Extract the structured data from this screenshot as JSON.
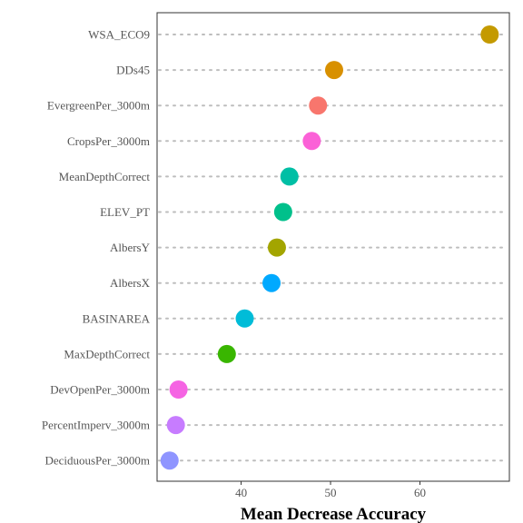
{
  "chart_data": {
    "type": "scatter",
    "style": "dot-plot",
    "xlabel": "Mean Decrease Accuracy",
    "ylabel": "",
    "xlim": [
      30.6,
      70.0
    ],
    "xticks": [
      40,
      50,
      60
    ],
    "grid": "dotted horizontal guides per category",
    "legend": "none",
    "categories": [
      "WSA_ECO9",
      "DDs45",
      "EvergreenPer_3000m",
      "CropsPer_3000m",
      "MeanDepthCorrect",
      "ELEV_PT",
      "AlbersY",
      "AlbersX",
      "BASINAREA",
      "MaxDepthCorrect",
      "DevOpenPer_3000m",
      "PercentImperv_3000m",
      "DeciduousPer_3000m"
    ],
    "values": [
      67.8,
      50.4,
      48.6,
      47.9,
      45.4,
      44.7,
      44.0,
      43.4,
      40.4,
      38.4,
      33.0,
      32.7,
      32.0
    ],
    "colors": [
      "#c49a00",
      "#d89000",
      "#f8766d",
      "#fb61d7",
      "#00bfa5",
      "#00c08b",
      "#a3a500",
      "#00a9ff",
      "#00bcd8",
      "#39b600",
      "#f564e3",
      "#c77cff",
      "#8f95ff"
    ]
  }
}
